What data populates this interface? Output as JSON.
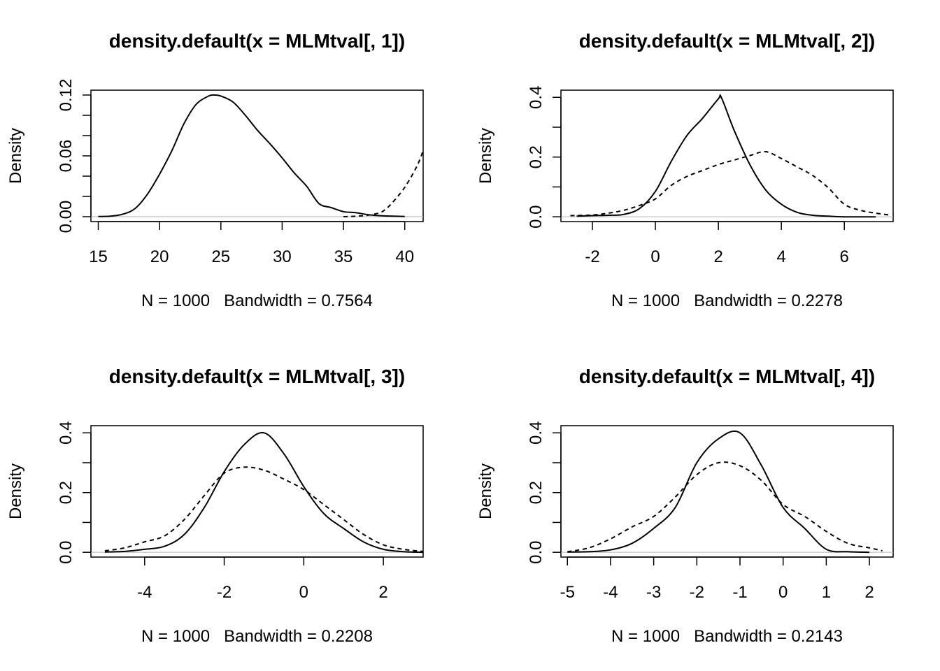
{
  "chart_data": [
    {
      "type": "line",
      "title": "density.default(x = MLMtval[, 1])",
      "xlabel": "N = 1000   Bandwidth = 0.7564",
      "ylabel": "Density",
      "xlim": [
        14.4,
        41.5
      ],
      "ylim": [
        -0.0048,
        0.1248
      ],
      "xticks": [
        15,
        20,
        25,
        30,
        35,
        40
      ],
      "yticks": [
        0,
        0.02,
        0.04,
        0.06,
        0.08,
        0.1,
        0.12
      ],
      "ytick_labels": [
        [
          "0.00",
          0
        ],
        [
          "0.06",
          0.06
        ],
        [
          "0.12",
          0.12
        ]
      ],
      "series": [
        {
          "style": "solid",
          "x": [
            15.0,
            16.0,
            17.0,
            18.0,
            19.0,
            20.0,
            21.0,
            22.0,
            23.0,
            24.0,
            24.5,
            25.0,
            26.0,
            27.0,
            28.0,
            29.0,
            30.0,
            31.0,
            32.0,
            33.0,
            34.0,
            35.0,
            36.0,
            37.0,
            38.0,
            39.0,
            40.0
          ],
          "y": [
            0.0002,
            0.0006,
            0.0025,
            0.008,
            0.022,
            0.042,
            0.065,
            0.092,
            0.111,
            0.119,
            0.12,
            0.119,
            0.113,
            0.1,
            0.085,
            0.072,
            0.058,
            0.043,
            0.03,
            0.013,
            0.009,
            0.005,
            0.004,
            0.002,
            0.001,
            0.0005,
            0.0002
          ]
        },
        {
          "style": "dashed",
          "x": [
            35.0,
            36.0,
            37.0,
            38.0,
            38.5,
            39.0,
            40.0,
            41.0,
            41.5
          ],
          "y": [
            0.0,
            0.0005,
            0.0015,
            0.004,
            0.008,
            0.014,
            0.029,
            0.05,
            0.065
          ]
        }
      ]
    },
    {
      "type": "line",
      "title": "density.default(x = MLMtval[, 2])",
      "xlabel": "N = 1000   Bandwidth = 0.2278",
      "ylabel": "Density",
      "xlim": [
        -3.0,
        7.55
      ],
      "ylim": [
        -0.016,
        0.424
      ],
      "xticks": [
        -2,
        0,
        2,
        4,
        6
      ],
      "yticks": [
        0,
        0.1,
        0.2,
        0.3,
        0.4
      ],
      "ytick_labels": [
        [
          "0.0",
          0
        ],
        [
          "0.2",
          0.2
        ],
        [
          "0.4",
          0.4
        ]
      ],
      "series": [
        {
          "style": "solid",
          "x": [
            -2.5,
            -2.0,
            -1.5,
            -1.0,
            -0.5,
            0.0,
            0.5,
            1.0,
            1.5,
            2.0,
            2.1,
            2.5,
            3.0,
            3.5,
            4.0,
            4.5,
            5.0,
            5.5,
            6.0,
            7.0
          ],
          "y": [
            0.002,
            0.004,
            0.005,
            0.008,
            0.028,
            0.085,
            0.185,
            0.272,
            0.33,
            0.395,
            0.398,
            0.29,
            0.175,
            0.09,
            0.042,
            0.015,
            0.005,
            0.002,
            0.0,
            0.0
          ]
        },
        {
          "style": "dashed",
          "x": [
            -2.7,
            -2.0,
            -1.5,
            -1.0,
            -0.5,
            0.0,
            0.5,
            1.0,
            1.5,
            2.0,
            2.5,
            3.0,
            3.5,
            4.0,
            4.5,
            5.0,
            5.5,
            6.0,
            6.5,
            7.0,
            7.5
          ],
          "y": [
            0.004,
            0.006,
            0.012,
            0.022,
            0.038,
            0.06,
            0.105,
            0.135,
            0.155,
            0.175,
            0.19,
            0.205,
            0.218,
            0.195,
            0.167,
            0.138,
            0.096,
            0.042,
            0.022,
            0.012,
            0.005
          ]
        }
      ]
    },
    {
      "type": "line",
      "title": "density.default(x = MLMtval[, 3])",
      "xlabel": "N = 1000   Bandwidth = 0.2208",
      "ylabel": "Density",
      "xlim": [
        -5.35,
        3.0
      ],
      "ylim": [
        -0.016,
        0.424
      ],
      "xticks": [
        -4,
        -2,
        0,
        2
      ],
      "yticks": [
        0,
        0.1,
        0.2,
        0.3,
        0.4
      ],
      "ytick_labels": [
        [
          "0.0",
          0
        ],
        [
          "0.2",
          0.2
        ],
        [
          "0.4",
          0.4
        ]
      ],
      "series": [
        {
          "style": "solid",
          "x": [
            -5.0,
            -4.5,
            -4.0,
            -3.5,
            -3.0,
            -2.5,
            -2.0,
            -1.5,
            -1.0,
            -0.5,
            0.0,
            0.5,
            1.0,
            1.5,
            2.0,
            2.5,
            3.0
          ],
          "y": [
            0.001,
            0.003,
            0.01,
            0.02,
            0.06,
            0.15,
            0.27,
            0.36,
            0.4,
            0.33,
            0.22,
            0.13,
            0.08,
            0.035,
            0.01,
            0.002,
            0.0
          ]
        },
        {
          "style": "dashed",
          "x": [
            -5.0,
            -4.5,
            -4.0,
            -3.5,
            -3.0,
            -2.5,
            -2.0,
            -1.5,
            -1.0,
            -0.5,
            0.0,
            0.5,
            1.0,
            1.5,
            2.0,
            2.5,
            3.0
          ],
          "y": [
            0.005,
            0.015,
            0.035,
            0.055,
            0.11,
            0.19,
            0.265,
            0.285,
            0.275,
            0.245,
            0.21,
            0.16,
            0.11,
            0.06,
            0.025,
            0.01,
            0.003
          ]
        }
      ]
    },
    {
      "type": "line",
      "title": "density.default(x = MLMtval[, 4])",
      "xlabel": "N = 1000   Bandwidth = 0.2143",
      "ylabel": "Density",
      "xlim": [
        -5.15,
        2.55
      ],
      "ylim": [
        -0.016,
        0.424
      ],
      "xticks": [
        -5,
        -4,
        -3,
        -2,
        -1,
        0,
        1,
        2
      ],
      "yticks": [
        0,
        0.1,
        0.2,
        0.3,
        0.4
      ],
      "ytick_labels": [
        [
          "0.0",
          0
        ],
        [
          "0.2",
          0.2
        ],
        [
          "0.4",
          0.4
        ]
      ],
      "series": [
        {
          "style": "solid",
          "x": [
            -5.0,
            -4.5,
            -4.0,
            -3.5,
            -3.0,
            -2.5,
            -2.0,
            -1.5,
            -1.0,
            -0.5,
            0.0,
            0.5,
            1.0,
            1.5,
            2.0
          ],
          "y": [
            0.001,
            0.002,
            0.008,
            0.03,
            0.08,
            0.15,
            0.3,
            0.38,
            0.4,
            0.29,
            0.15,
            0.08,
            0.01,
            0.002,
            0.0
          ]
        },
        {
          "style": "dashed",
          "x": [
            -5.0,
            -4.5,
            -4.0,
            -3.5,
            -3.0,
            -2.5,
            -2.0,
            -1.5,
            -1.0,
            -0.5,
            0.0,
            0.5,
            1.0,
            1.5,
            2.0,
            2.3
          ],
          "y": [
            0.002,
            0.015,
            0.045,
            0.085,
            0.12,
            0.185,
            0.26,
            0.3,
            0.29,
            0.24,
            0.16,
            0.12,
            0.07,
            0.03,
            0.015,
            0.005
          ]
        }
      ]
    }
  ]
}
